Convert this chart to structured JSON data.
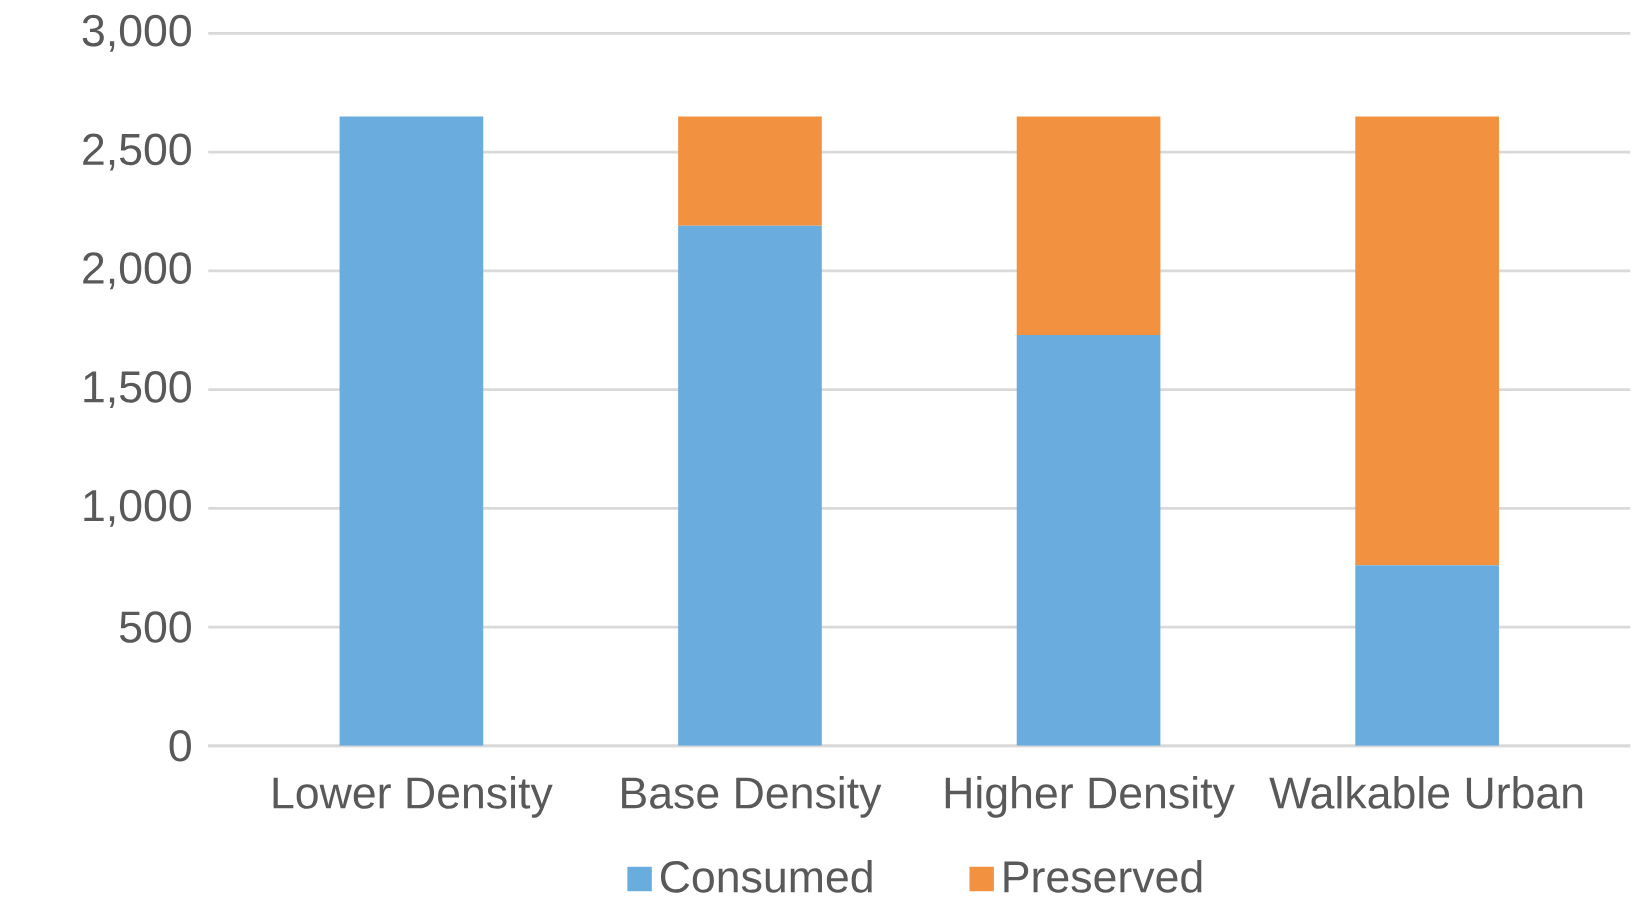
{
  "chart_data": {
    "type": "bar",
    "stacked": true,
    "categories": [
      "Lower Density",
      "Base Density",
      "Higher Density",
      "Walkable Urban"
    ],
    "series": [
      {
        "name": "Consumed",
        "color": "#6aacdd",
        "values": [
          2650,
          2190,
          1730,
          760
        ]
      },
      {
        "name": "Preserved",
        "color": "#f29140",
        "values": [
          0,
          460,
          920,
          1890
        ]
      }
    ],
    "ylim": [
      0,
      3000
    ],
    "yticks": [
      {
        "value": 0,
        "label": "0"
      },
      {
        "value": 500,
        "label": "500"
      },
      {
        "value": 1000,
        "label": "1,000"
      },
      {
        "value": 1500,
        "label": "1,500"
      },
      {
        "value": 2000,
        "label": "2,000"
      },
      {
        "value": 2500,
        "label": "2,500"
      },
      {
        "value": 3000,
        "label": "3,000"
      }
    ],
    "grid": "y",
    "legend": "bottom"
  }
}
